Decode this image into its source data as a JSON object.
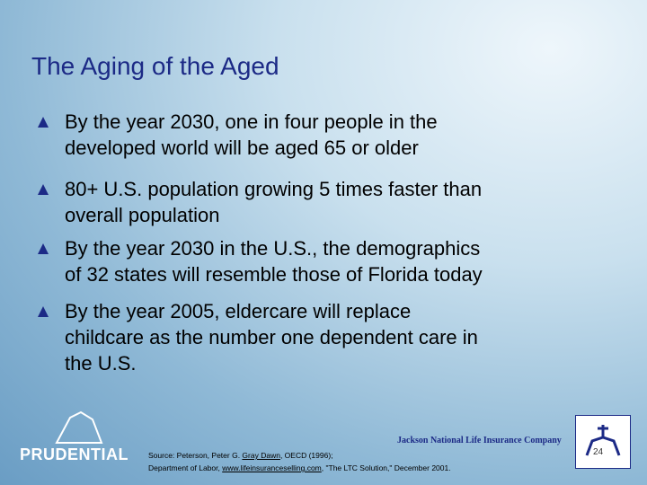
{
  "header": {
    "title": "The Aging of the Aged"
  },
  "bullets": [
    [
      "By the year 2030, one in four people in the",
      "developed world will be aged 65 or older"
    ],
    [
      "80+ U.S. population growing 5 times faster than",
      "overall population"
    ],
    [
      "By the year 2030 in the U.S., the demographics",
      "of 32 states will resemble those of Florida today"
    ],
    [
      "By the year 2005, eldercare will replace",
      "childcare as the number one dependent care in",
      "the U.S."
    ]
  ],
  "footer": {
    "left_logo": "PRUDENTIAL",
    "right_logo": "Jackson National Life Insurance Company",
    "page_number": "24",
    "source": [
      [
        "Source: Peterson, Peter G. ",
        "Gray Dawn",
        ", OECD (1996);"
      ],
      [
        "Department of Labor, ",
        "www.lifeinsuranceselling.com",
        ", \"The LTC Solution,\" December 2001."
      ]
    ]
  }
}
